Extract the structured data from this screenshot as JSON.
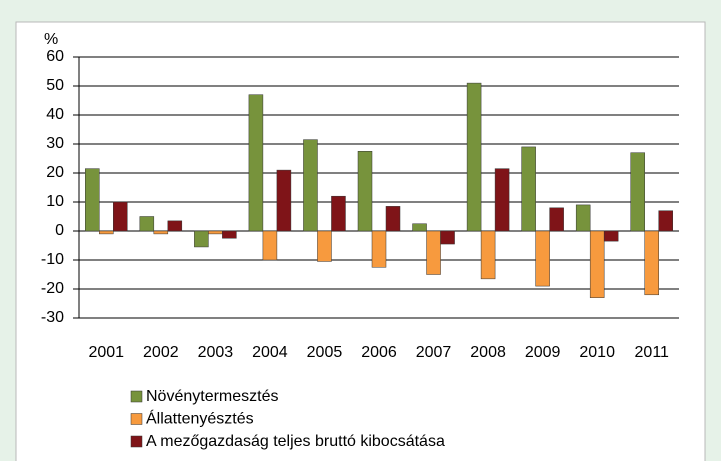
{
  "chart_data": {
    "type": "bar",
    "y_label": "%",
    "categories": [
      "2001",
      "2002",
      "2003",
      "2004",
      "2005",
      "2006",
      "2007",
      "2008",
      "2009",
      "2010",
      "2011"
    ],
    "series": [
      {
        "name": "Növénytermesztés",
        "color": "#77933c",
        "values": [
          21.5,
          5,
          -5.5,
          47,
          31.5,
          27.5,
          2.5,
          51,
          29,
          9,
          27
        ]
      },
      {
        "name": "Állattenyésztés",
        "color": "#f79a3e",
        "values": [
          -1,
          -1,
          -1,
          -10,
          -10.5,
          -12.5,
          -15,
          -16.5,
          -19,
          -23,
          -22
        ]
      },
      {
        "name": "A mezőgazdaság teljes bruttó kibocsátása",
        "color": "#7f1418",
        "values": [
          10,
          3.5,
          -2.5,
          21,
          12,
          8.5,
          -4.5,
          21.5,
          8,
          -3.5,
          7
        ]
      }
    ],
    "ylim": [
      -30,
      60
    ],
    "yticks": [
      -30,
      -20,
      -10,
      0,
      10,
      20,
      30,
      40,
      50,
      60
    ],
    "grid": true
  }
}
